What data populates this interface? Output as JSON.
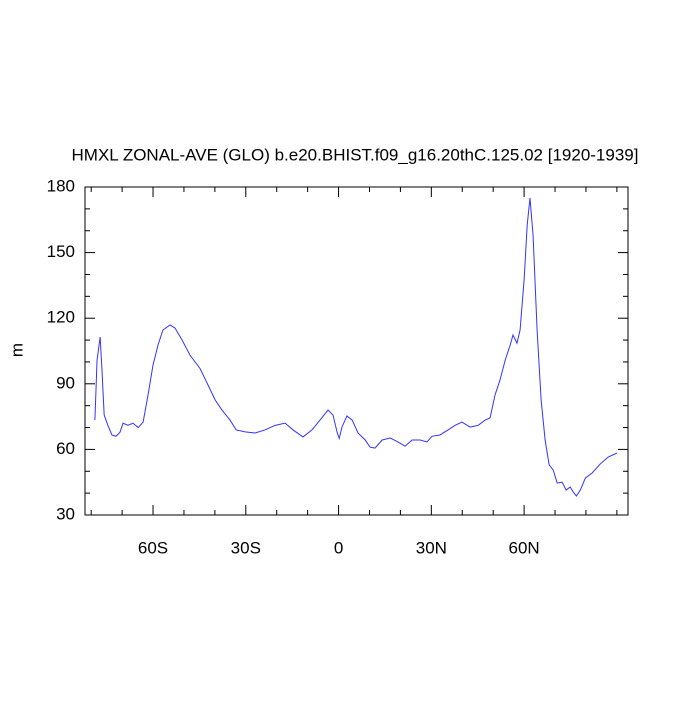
{
  "chart_data": {
    "type": "line",
    "title": "HMXL ZONAL-AVE (GLO) b.e20.BHIST.f09_g16.20thC.125.02 [1920-1939]",
    "y_label": "m",
    "x": [
      -78.8,
      -78.1,
      -77.1,
      -76.5,
      -75.8,
      -74.6,
      -73.3,
      -72.0,
      -70.7,
      -69.7,
      -68.1,
      -66.5,
      -64.8,
      -63.2,
      -61.6,
      -60.0,
      -58.4,
      -56.8,
      -54.5,
      -52.9,
      -50.6,
      -48.0,
      -44.8,
      -42.2,
      -39.9,
      -37.7,
      -35.1,
      -33.1,
      -30.2,
      -27.0,
      -23.8,
      -20.5,
      -17.3,
      -14.7,
      -11.5,
      -8.6,
      -6.0,
      -3.4,
      -1.8,
      -0.5,
      0.2,
      1.1,
      2.7,
      4.4,
      6.3,
      8.6,
      10.2,
      11.8,
      14.1,
      16.7,
      19.2,
      21.5,
      23.8,
      26.4,
      28.6,
      30.2,
      32.8,
      35.4,
      37.7,
      39.9,
      42.5,
      45.1,
      47.4,
      49.0,
      50.6,
      52.2,
      53.9,
      55.5,
      56.4,
      57.7,
      58.7,
      60.0,
      61.0,
      61.9,
      62.9,
      64.2,
      65.5,
      66.8,
      68.1,
      69.4,
      70.7,
      72.3,
      73.6,
      74.9,
      75.9,
      76.9,
      78.2,
      79.8,
      82.0,
      84.6,
      87.2,
      90.0
    ],
    "series": [
      {
        "color": "#3333ff",
        "values": [
          73.4,
          100.9,
          111.4,
          96.0,
          75.7,
          71.0,
          66.6,
          66.0,
          67.8,
          72.0,
          71.0,
          72.0,
          70.0,
          72.5,
          85.0,
          98.6,
          107.7,
          114.6,
          116.9,
          115.5,
          110.0,
          103.0,
          97.0,
          89.4,
          82.6,
          78.0,
          73.4,
          68.9,
          68.0,
          67.5,
          68.9,
          71.0,
          72.0,
          68.9,
          65.7,
          68.9,
          73.4,
          78.0,
          75.7,
          68.0,
          65.0,
          70.2,
          75.3,
          73.4,
          67.5,
          64.3,
          61.0,
          60.6,
          64.3,
          65.2,
          63.4,
          61.5,
          64.3,
          64.3,
          63.4,
          66.0,
          66.6,
          68.9,
          71.0,
          72.5,
          70.2,
          71.0,
          73.4,
          74.4,
          84.9,
          91.7,
          100.9,
          107.7,
          112.3,
          108.6,
          114.6,
          137.5,
          162.6,
          175.0,
          158.0,
          114.6,
          82.6,
          64.3,
          52.9,
          50.6,
          44.6,
          45.0,
          41.4,
          42.8,
          40.5,
          38.7,
          41.4,
          46.9,
          49.2,
          53.3,
          56.5,
          58.3
        ]
      }
    ],
    "xlim": [
      -82,
      93.6
    ],
    "ylim": [
      30,
      180
    ],
    "xticks": [
      {
        "value": -60,
        "label": "60S"
      },
      {
        "value": -30,
        "label": "30S"
      },
      0,
      {
        "value": 30,
        "label": "30N"
      },
      {
        "value": 60,
        "label": "60N"
      }
    ],
    "yticks": [
      30,
      60,
      90,
      120,
      150,
      180
    ],
    "xminorticks": [
      -80,
      -70,
      -50,
      -40,
      -20,
      -10,
      10,
      20,
      40,
      50,
      70,
      80,
      90
    ],
    "yminorticks": [
      40,
      50,
      70,
      80,
      100,
      110,
      130,
      140,
      160,
      170
    ]
  }
}
